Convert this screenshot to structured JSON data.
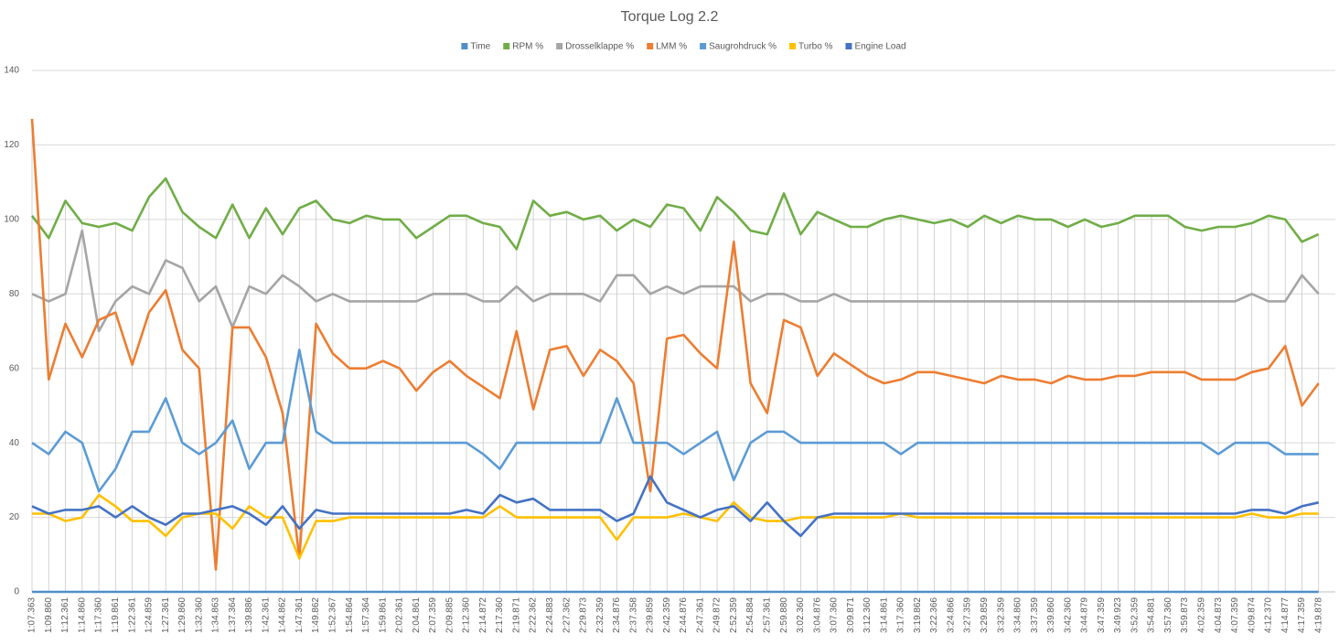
{
  "chart_data": {
    "type": "line",
    "title": "Torque Log 2.2",
    "categories": [
      "1:07.363",
      "1:09.860",
      "1:12.361",
      "1:14.860",
      "1:17.360",
      "1:19.861",
      "1:22.361",
      "1:24.859",
      "1:27.361",
      "1:29.860",
      "1:32.360",
      "1:34.863",
      "1:37.364",
      "1:39.886",
      "1:42.361",
      "1:44.862",
      "1:47.361",
      "1:49.862",
      "1:52.367",
      "1:54.864",
      "1:57.364",
      "1:59.861",
      "2:02.361",
      "2:04.861",
      "2:07.359",
      "2:09.885",
      "2:12.360",
      "2:14.872",
      "2:17.360",
      "2:19.871",
      "2:22.362",
      "2:24.883",
      "2:27.362",
      "2:29.873",
      "2:32.359",
      "2:34.876",
      "2:37.358",
      "2:39.859",
      "2:42.359",
      "2:44.876",
      "2:47.361",
      "2:49.872",
      "2:52.359",
      "2:54.884",
      "2:57.361",
      "2:59.880",
      "3:02.360",
      "3:04.876",
      "3:07.360",
      "3:09.871",
      "3:12.360",
      "3:14.861",
      "3:17.360",
      "3:19.862",
      "3:22.366",
      "3:24.866",
      "3:27.359",
      "3:29.859",
      "3:32.359",
      "3:34.860",
      "3:37.359",
      "3:39.860",
      "3:42.360",
      "3:44.879",
      "3:47.359",
      "3:49.923",
      "3:52.359",
      "3:54.881",
      "3:57.360",
      "3:59.873",
      "4:02.359",
      "4:04.873",
      "4:07.359",
      "4:09.874",
      "4:12.370",
      "4:14.877",
      "4:17.359",
      "4:19.878"
    ],
    "series": [
      {
        "name": "Time",
        "color": "#4f8fc8",
        "values": [
          0,
          0,
          0,
          0,
          0,
          0,
          0,
          0,
          0,
          0,
          0,
          0,
          0,
          0,
          0,
          0,
          0,
          0,
          0,
          0,
          0,
          0,
          0,
          0,
          0,
          0,
          0,
          0,
          0,
          0,
          0,
          0,
          0,
          0,
          0,
          0,
          0,
          0,
          0,
          0,
          0,
          0,
          0,
          0,
          0,
          0,
          0,
          0,
          0,
          0,
          0,
          0,
          0,
          0,
          0,
          0,
          0,
          0,
          0,
          0,
          0,
          0,
          0,
          0,
          0,
          0,
          0,
          0,
          0,
          0,
          0,
          0,
          0,
          0,
          0,
          0,
          0,
          0
        ]
      },
      {
        "name": "RPM %",
        "color": "#70ad47",
        "values": [
          101,
          95,
          105,
          99,
          98,
          99,
          97,
          106,
          111,
          102,
          98,
          95,
          104,
          95,
          103,
          96,
          103,
          105,
          100,
          99,
          101,
          100,
          100,
          95,
          98,
          101,
          101,
          99,
          98,
          92,
          105,
          101,
          102,
          100,
          101,
          97,
          100,
          98,
          104,
          103,
          97,
          106,
          102,
          97,
          96,
          107,
          96,
          102,
          100,
          98,
          98,
          100,
          101,
          100,
          99,
          100,
          98,
          101,
          99,
          101,
          100,
          100,
          98,
          100,
          98,
          99,
          101,
          101,
          101,
          98,
          97,
          98,
          98,
          99,
          101,
          100,
          94,
          96
        ]
      },
      {
        "name": "Drosselklappe %",
        "color": "#a5a5a5",
        "values": [
          80,
          78,
          80,
          97,
          70,
          78,
          82,
          80,
          89,
          87,
          78,
          82,
          71,
          82,
          80,
          85,
          82,
          78,
          80,
          78,
          78,
          78,
          78,
          78,
          80,
          80,
          80,
          78,
          78,
          82,
          78,
          80,
          80,
          80,
          78,
          85,
          85,
          80,
          82,
          80,
          82,
          82,
          82,
          78,
          80,
          80,
          78,
          78,
          80,
          78,
          78,
          78,
          78,
          78,
          78,
          78,
          78,
          78,
          78,
          78,
          78,
          78,
          78,
          78,
          78,
          78,
          78,
          78,
          78,
          78,
          78,
          78,
          78,
          80,
          78,
          78,
          85,
          80
        ]
      },
      {
        "name": "LMM %",
        "color": "#ed7d31",
        "values": [
          127,
          57,
          72,
          63,
          73,
          75,
          61,
          75,
          81,
          65,
          60,
          6,
          71,
          71,
          63,
          48,
          9,
          72,
          64,
          60,
          60,
          62,
          60,
          54,
          59,
          62,
          58,
          55,
          52,
          70,
          49,
          65,
          66,
          58,
          65,
          62,
          56,
          27,
          68,
          69,
          64,
          60,
          94,
          56,
          48,
          73,
          71,
          58,
          64,
          61,
          58,
          56,
          57,
          59,
          59,
          58,
          57,
          56,
          58,
          57,
          57,
          56,
          58,
          57,
          57,
          58,
          58,
          59,
          59,
          59,
          57,
          57,
          57,
          59,
          60,
          66,
          50,
          56
        ]
      },
      {
        "name": "Saugrohdruck %",
        "color": "#5b9bd5",
        "values": [
          40,
          37,
          43,
          40,
          27,
          33,
          43,
          43,
          52,
          40,
          37,
          40,
          46,
          33,
          40,
          40,
          65,
          43,
          40,
          40,
          40,
          40,
          40,
          40,
          40,
          40,
          40,
          37,
          33,
          40,
          40,
          40,
          40,
          40,
          40,
          52,
          40,
          40,
          40,
          37,
          40,
          43,
          30,
          40,
          43,
          43,
          40,
          40,
          40,
          40,
          40,
          40,
          37,
          40,
          40,
          40,
          40,
          40,
          40,
          40,
          40,
          40,
          40,
          40,
          40,
          40,
          40,
          40,
          40,
          40,
          40,
          37,
          40,
          40,
          40,
          37,
          37,
          37
        ]
      },
      {
        "name": "Turbo %",
        "color": "#ffc000",
        "values": [
          21,
          21,
          19,
          20,
          26,
          23,
          19,
          19,
          15,
          20,
          21,
          21,
          17,
          23,
          20,
          20,
          9,
          19,
          19,
          20,
          20,
          20,
          20,
          20,
          20,
          20,
          20,
          20,
          23,
          20,
          20,
          20,
          20,
          20,
          20,
          14,
          20,
          20,
          20,
          21,
          20,
          19,
          24,
          20,
          19,
          19,
          20,
          20,
          20,
          20,
          20,
          20,
          21,
          20,
          20,
          20,
          20,
          20,
          20,
          20,
          20,
          20,
          20,
          20,
          20,
          20,
          20,
          20,
          20,
          20,
          20,
          20,
          20,
          21,
          20,
          20,
          21,
          21
        ]
      },
      {
        "name": "Engine Load",
        "color": "#4472c4",
        "values": [
          23,
          21,
          22,
          22,
          23,
          20,
          23,
          20,
          18,
          21,
          21,
          22,
          23,
          21,
          18,
          23,
          17,
          22,
          21,
          21,
          21,
          21,
          21,
          21,
          21,
          21,
          22,
          21,
          26,
          24,
          25,
          22,
          22,
          22,
          22,
          19,
          21,
          31,
          24,
          22,
          20,
          22,
          23,
          19,
          24,
          19,
          15,
          20,
          21,
          21,
          21,
          21,
          21,
          21,
          21,
          21,
          21,
          21,
          21,
          21,
          21,
          21,
          21,
          21,
          21,
          21,
          21,
          21,
          21,
          21,
          21,
          21,
          21,
          22,
          22,
          21,
          23,
          24
        ]
      }
    ],
    "ylim": [
      0,
      140
    ],
    "yticks": [
      0,
      20,
      40,
      60,
      80,
      100,
      120,
      140
    ],
    "grid": true,
    "legend": "top",
    "drop_lines": true
  }
}
